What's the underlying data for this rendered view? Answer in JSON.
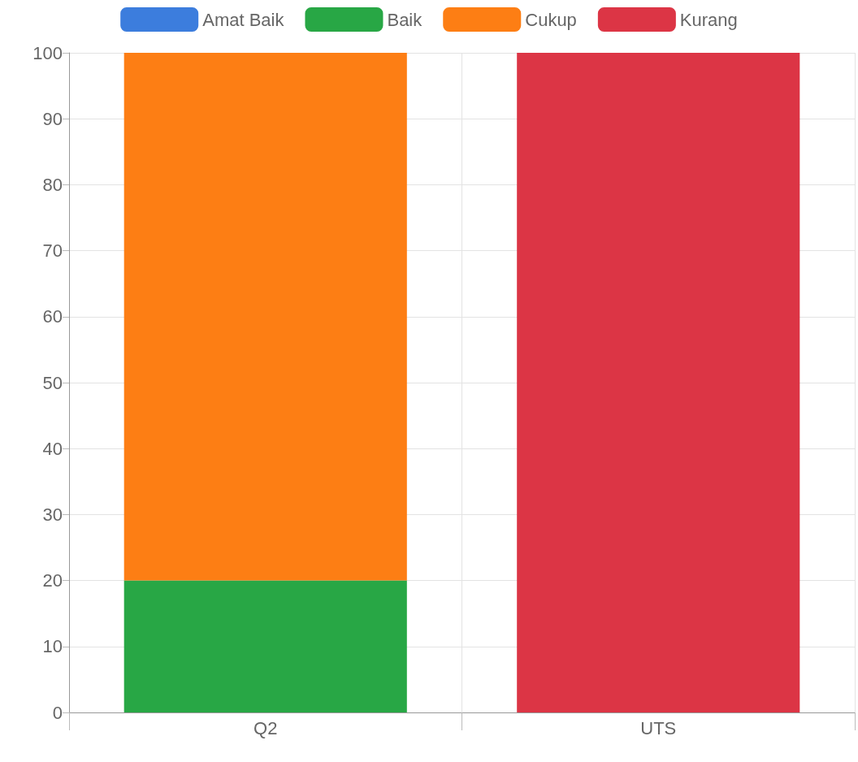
{
  "chart_data": {
    "type": "bar",
    "stacked": true,
    "categories": [
      "Q2",
      "UTS"
    ],
    "series": [
      {
        "name": "Amat Baik",
        "color": "#3c7ddd",
        "values": [
          0,
          0
        ]
      },
      {
        "name": "Baik",
        "color": "#28a745",
        "values": [
          20,
          0
        ]
      },
      {
        "name": "Cukup",
        "color": "#fd7e14",
        "values": [
          80,
          0
        ]
      },
      {
        "name": "Kurang",
        "color": "#dc3545",
        "values": [
          0,
          100
        ]
      }
    ],
    "ylim": [
      0,
      100
    ],
    "yticks": [
      0,
      10,
      20,
      30,
      40,
      50,
      60,
      70,
      80,
      90,
      100
    ],
    "grid": true,
    "legend": "top"
  }
}
